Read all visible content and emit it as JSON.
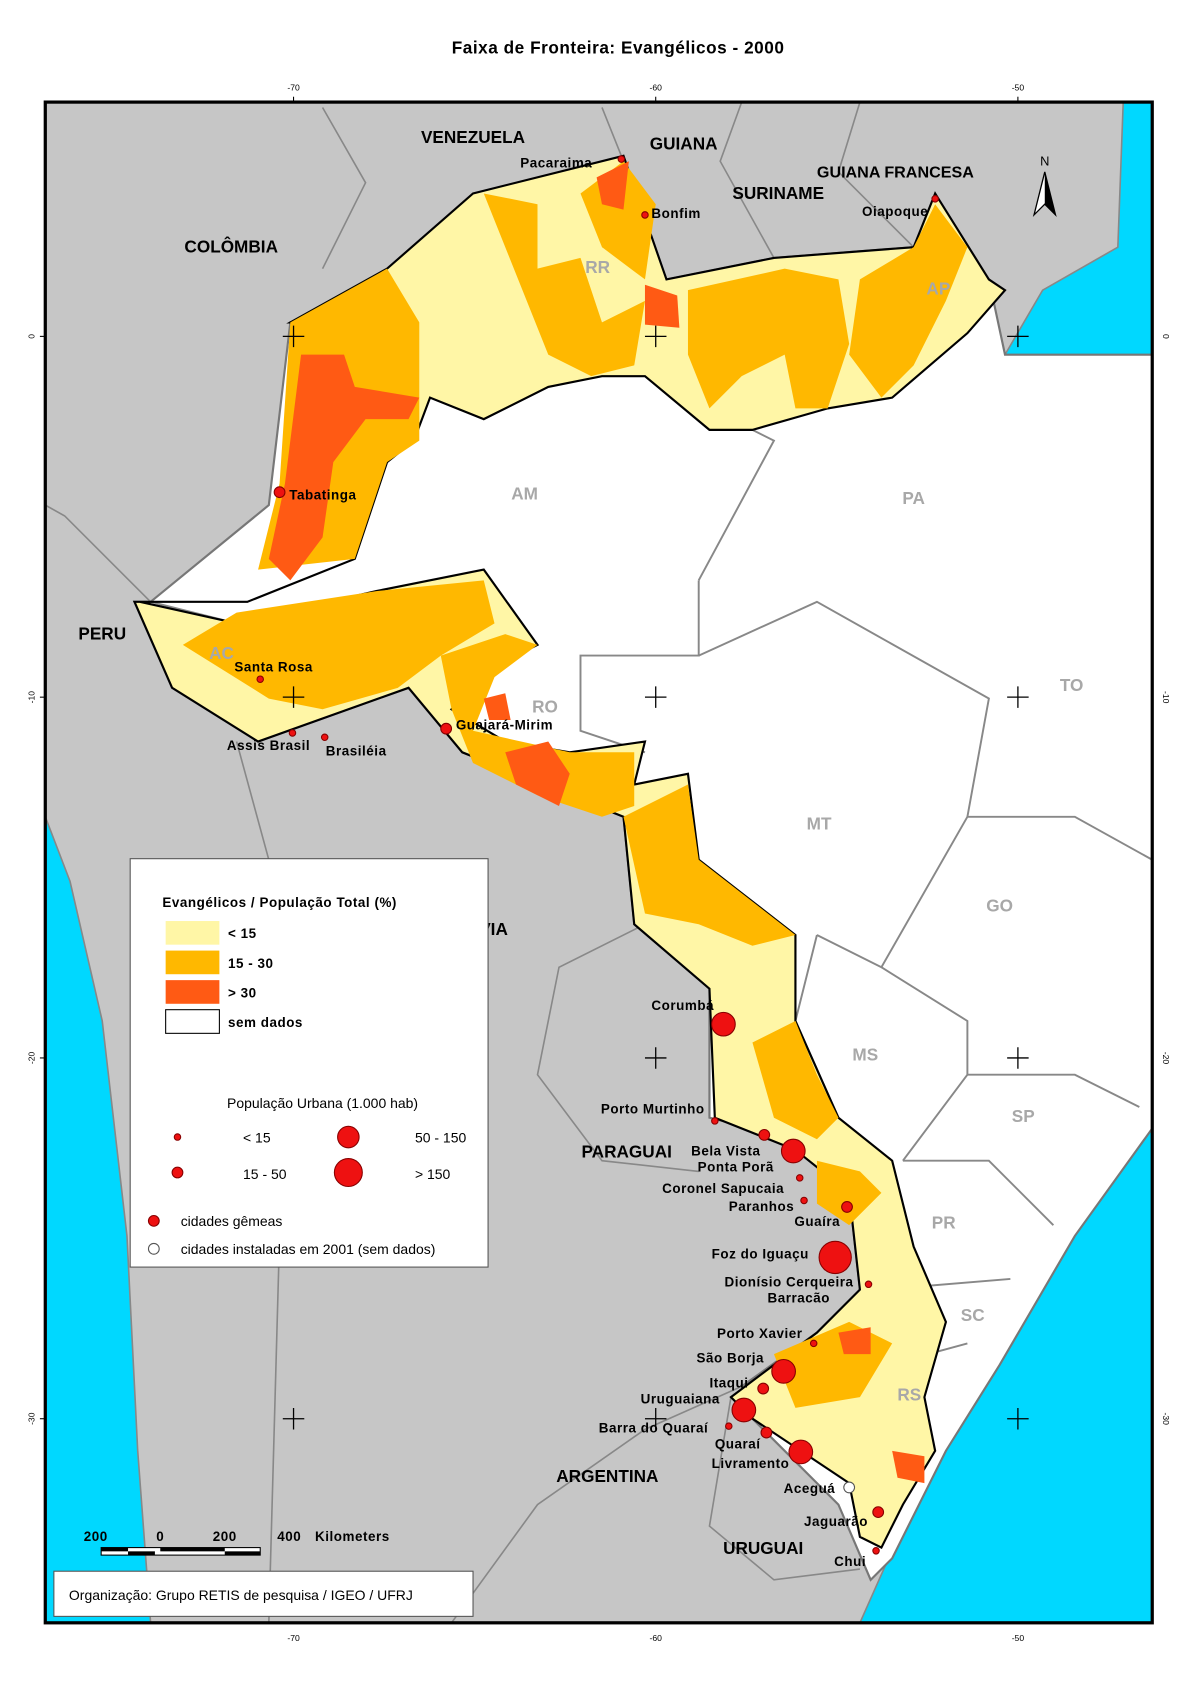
{
  "title": "Faixa de Fronteira: Evangélicos - 2000",
  "lon_ticks": [
    -70,
    -60,
    -50
  ],
  "lat_ticks": [
    0,
    -10,
    -20,
    -30
  ],
  "north": "N",
  "countries": [
    "VENEZUELA",
    "GUIANA",
    "SURINAME",
    "GUIANA FRANCESA",
    "COLÔMBIA",
    "PERU",
    "BOLÍVIA",
    "PARAGUAI",
    "ARGENTINA",
    "URUGUAI"
  ],
  "states": [
    "RR",
    "AP",
    "AM",
    "PA",
    "AC",
    "RO",
    "TO",
    "MT",
    "GO",
    "MS",
    "SP",
    "PR",
    "SC",
    "RS"
  ],
  "cities": [
    "Pacaraima",
    "Bonfim",
    "Oiapoque",
    "Tabatinga",
    "Santa Rosa",
    "Assis Brasil",
    "Brasiléia",
    "Guajará-Mirim",
    "Corumbá",
    "Porto Murtinho",
    "Bela Vista",
    "Ponta Porã",
    "Coronel Sapucaia",
    "Paranhos",
    "Guaíra",
    "Foz do Iguaçu",
    "Dionísio Cerqueira",
    "Barracão",
    "Porto Xavier",
    "São Borja",
    "Itaqui",
    "Uruguaiana",
    "Barra do Quaraí",
    "Quaraí",
    "Livramento",
    "Aceguá",
    "Jaguarão",
    "Chui"
  ],
  "legend": {
    "title": "Evangélicos / População Total (%)",
    "classes": [
      {
        "label": "< 15",
        "color": "#fff6a6"
      },
      {
        "label": "15 - 30",
        "color": "#ffb800"
      },
      {
        "label": "> 30",
        "color": "#ff5a14"
      },
      {
        "label": "sem dados",
        "color": "#ffffff"
      }
    ],
    "population_title": "População Urbana (1.000 hab)",
    "population_classes": [
      "< 15",
      "15 - 50",
      "50 - 150",
      "> 150"
    ],
    "twin_cities": "cidades gêmeas",
    "new_cities": "cidades instaladas em 2001 (sem dados)"
  },
  "scale_bar": {
    "labels": [
      "200",
      "0",
      "200",
      "400"
    ],
    "unit": "Kilometers"
  },
  "credit": "Organização: Grupo RETIS de pesquisa / IGEO / UFRJ"
}
